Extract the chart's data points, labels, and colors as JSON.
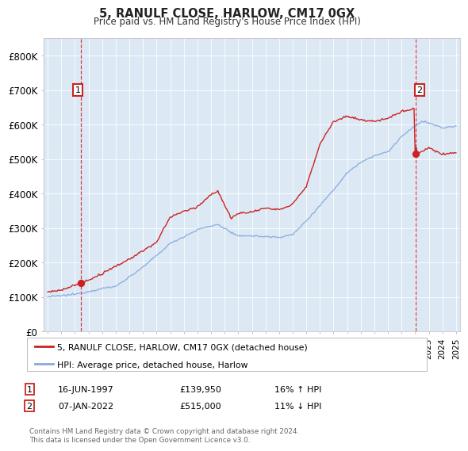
{
  "title": "5, RANULF CLOSE, HARLOW, CM17 0GX",
  "subtitle": "Price paid vs. HM Land Registry's House Price Index (HPI)",
  "ylim": [
    0,
    850000
  ],
  "yticks": [
    0,
    100000,
    200000,
    300000,
    400000,
    500000,
    600000,
    700000,
    800000
  ],
  "ytick_labels": [
    "£0",
    "£100K",
    "£200K",
    "£300K",
    "£400K",
    "£500K",
    "£600K",
    "£700K",
    "£800K"
  ],
  "plot_bg_color": "#dce9f5",
  "line1_color": "#cc2222",
  "line2_color": "#88aadd",
  "line1_label": "5, RANULF CLOSE, HARLOW, CM17 0GX (detached house)",
  "line2_label": "HPI: Average price, detached house, Harlow",
  "sale1_date": 1997.46,
  "sale1_price": 139950,
  "sale2_date": 2022.02,
  "sale2_price": 515000,
  "annotation1_label": "1",
  "annotation2_label": "2",
  "footer_text": "Contains HM Land Registry data © Crown copyright and database right 2024.\nThis data is licensed under the Open Government Licence v3.0.",
  "table_row1": [
    "1",
    "16-JUN-1997",
    "£139,950",
    "16% ↑ HPI"
  ],
  "table_row2": [
    "2",
    "07-JAN-2022",
    "£515,000",
    "11% ↓ HPI"
  ],
  "xlim_left": 1994.7,
  "xlim_right": 2025.3
}
